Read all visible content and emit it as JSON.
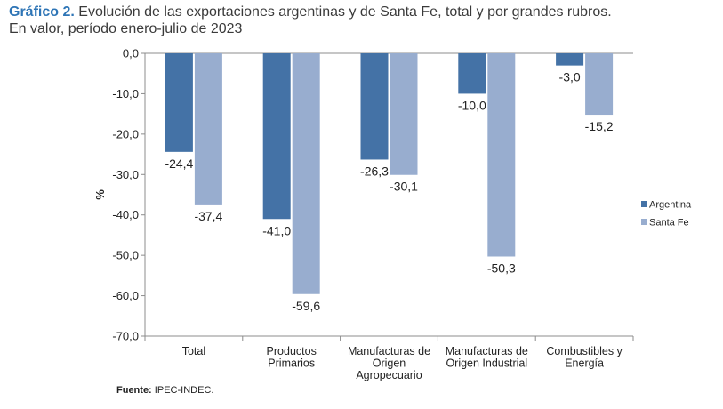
{
  "header": {
    "label": "Gráfico 2.",
    "title": "Evolución de las exportaciones argentinas y de Santa Fe, total y por grandes rubros.",
    "subtitle": "En valor, período enero-julio de 2023"
  },
  "footer": {
    "source_label": "Fuente:",
    "source_text": "IPEC-INDEC."
  },
  "colors": {
    "argentina": "#4472a6",
    "santa_fe": "#98adcf"
  },
  "chart_data": {
    "type": "bar",
    "ylabel": "%",
    "ylim": [
      -70,
      0
    ],
    "yticks": [
      0,
      -10,
      -20,
      -30,
      -40,
      -50,
      -60,
      -70
    ],
    "ytick_labels": [
      "0,0",
      "-10,0",
      "-20,0",
      "-30,0",
      "-40,0",
      "-50,0",
      "-60,0",
      "-70,0"
    ],
    "categories": [
      [
        "Total"
      ],
      [
        "Productos",
        "Primarios"
      ],
      [
        "Manufacturas de",
        "Origen",
        "Agropecuario"
      ],
      [
        "Manufacturas de",
        "Origen Industrial"
      ],
      [
        "Combustibles y",
        "Energía"
      ]
    ],
    "series": [
      {
        "name": "Argentina",
        "values": [
          -24.4,
          -41.0,
          -26.3,
          -10.0,
          -3.0
        ],
        "labels": [
          "-24,4",
          "-41,0",
          "-26,3",
          "-10,0",
          "-3,0"
        ]
      },
      {
        "name": "Santa Fe",
        "values": [
          -37.4,
          -59.6,
          -30.1,
          -50.3,
          -15.2
        ],
        "labels": [
          "-37,4",
          "-59,6",
          "-30,1",
          "-50,3",
          "-15,2"
        ]
      }
    ],
    "legend_position": "right",
    "grid": false
  }
}
